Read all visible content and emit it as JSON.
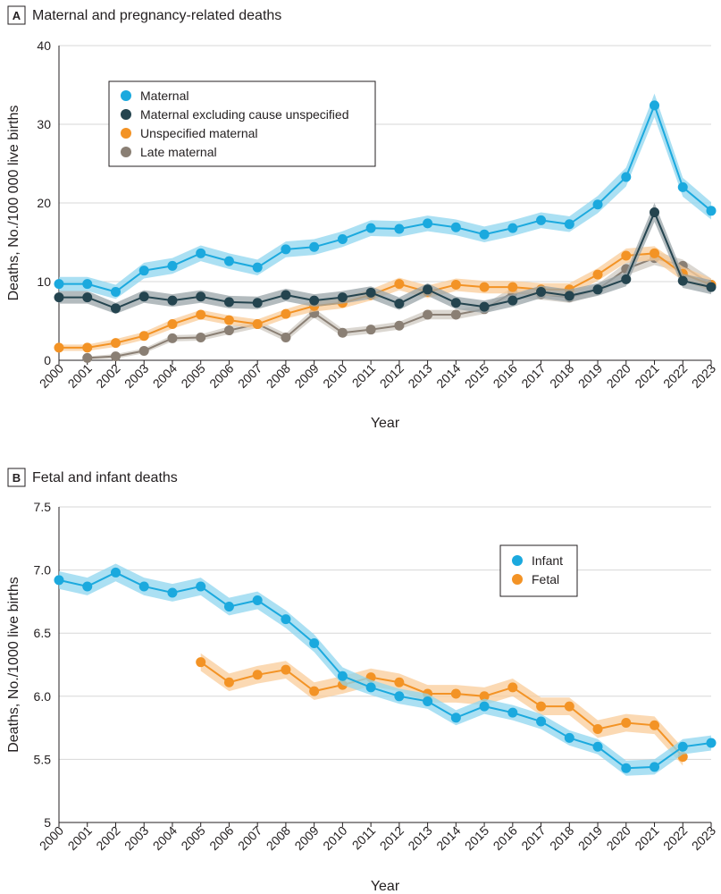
{
  "chart_data": [
    {
      "panel": "A",
      "type": "line",
      "title": "Maternal and pregnancy-related deaths",
      "xlabel": "Year",
      "ylabel": "Deaths, No./100 000 live births",
      "ylim": [
        0,
        40
      ],
      "yticks": [
        "0",
        "10",
        "20",
        "30",
        "40"
      ],
      "grid": "horizontal",
      "legend_position": "top-left",
      "x": [
        "2000",
        "2001",
        "2002",
        "2003",
        "2004",
        "2005",
        "2006",
        "2007",
        "2008",
        "2009",
        "2010",
        "2011",
        "2012",
        "2013",
        "2014",
        "2015",
        "2016",
        "2017",
        "2018",
        "2019",
        "2020",
        "2021",
        "2022",
        "2023"
      ],
      "series": [
        {
          "name": "Maternal",
          "color": "#1ba9de",
          "band_color": "#8fd5ef",
          "values": [
            9.7,
            9.7,
            8.7,
            11.4,
            12.0,
            13.6,
            12.6,
            11.8,
            14.1,
            14.4,
            15.4,
            16.8,
            16.7,
            17.4,
            16.9,
            16.0,
            16.8,
            17.8,
            17.3,
            19.8,
            23.3,
            32.4,
            22.0,
            19.0
          ],
          "band": [
            0.9,
            0.9,
            0.9,
            1.0,
            1.0,
            1.0,
            1.0,
            1.0,
            1.0,
            1.0,
            1.0,
            1.0,
            1.0,
            1.0,
            1.0,
            1.0,
            1.0,
            1.0,
            1.0,
            1.1,
            1.2,
            1.5,
            1.2,
            1.1
          ]
        },
        {
          "name": "Maternal excluding cause unspecified",
          "color": "#24444f",
          "band_color": "#9aa4a8",
          "values": [
            8.0,
            8.0,
            6.6,
            8.1,
            7.6,
            8.1,
            7.4,
            7.3,
            8.3,
            7.6,
            8.0,
            8.6,
            7.2,
            9.0,
            7.3,
            6.8,
            7.6,
            8.7,
            8.2,
            9.0,
            10.3,
            18.8,
            10.1,
            9.3
          ],
          "band": [
            0.8,
            0.8,
            0.7,
            0.8,
            0.8,
            0.8,
            0.8,
            0.8,
            0.8,
            0.8,
            0.8,
            0.8,
            0.8,
            0.8,
            0.8,
            0.8,
            0.8,
            0.8,
            0.8,
            0.8,
            0.9,
            1.2,
            0.9,
            0.9
          ]
        },
        {
          "name": "Unspecified maternal",
          "color": "#f39325",
          "band_color": "#f9cc9a",
          "values": [
            1.6,
            1.6,
            2.2,
            3.1,
            4.6,
            5.8,
            5.1,
            4.6,
            5.9,
            6.9,
            7.3,
            8.3,
            9.7,
            8.7,
            9.6,
            9.3,
            9.3,
            9.0,
            9.0,
            10.9,
            13.3,
            13.6,
            11.0,
            9.6
          ],
          "band": [
            0.4,
            0.4,
            0.5,
            0.5,
            0.6,
            0.6,
            0.6,
            0.6,
            0.6,
            0.7,
            0.7,
            0.7,
            0.8,
            0.8,
            0.8,
            0.8,
            0.8,
            0.8,
            0.8,
            0.8,
            0.9,
            0.9,
            0.9,
            0.8
          ]
        },
        {
          "name": "Late maternal",
          "color": "#8a7f74",
          "band_color": "#cfc9c2",
          "values": [
            null,
            0.3,
            0.5,
            1.2,
            2.8,
            2.9,
            3.8,
            4.6,
            2.9,
            6.0,
            3.5,
            3.9,
            4.4,
            5.8,
            5.8,
            6.5,
            8.6,
            8.4,
            8.0,
            9.0,
            11.6,
            13.0,
            12.0,
            9.6
          ],
          "band": [
            0,
            0.2,
            0.3,
            0.3,
            0.4,
            0.4,
            0.5,
            0.5,
            0.5,
            0.6,
            0.5,
            0.5,
            0.5,
            0.6,
            0.6,
            0.6,
            0.7,
            0.7,
            0.7,
            0.7,
            0.8,
            0.9,
            0.8,
            0.8
          ]
        }
      ]
    },
    {
      "panel": "B",
      "type": "line",
      "title": "Fetal and infant deaths",
      "xlabel": "Year",
      "ylabel": "Deaths, No./1000 live births",
      "ylim": [
        5,
        7.5
      ],
      "yticks": [
        "5",
        "5.5",
        "6.0",
        "6.5",
        "7.0",
        "7.5"
      ],
      "grid": "horizontal",
      "legend_position": "top-right",
      "x": [
        "2000",
        "2001",
        "2002",
        "2003",
        "2004",
        "2005",
        "2006",
        "2007",
        "2008",
        "2009",
        "2010",
        "2011",
        "2012",
        "2013",
        "2014",
        "2015",
        "2016",
        "2017",
        "2018",
        "2019",
        "2020",
        "2021",
        "2022",
        "2023"
      ],
      "series": [
        {
          "name": "Infant",
          "color": "#1ba9de",
          "band_color": "#8fd5ef",
          "values": [
            6.92,
            6.87,
            6.98,
            6.87,
            6.82,
            6.87,
            6.71,
            6.76,
            6.61,
            6.42,
            6.16,
            6.07,
            6.0,
            5.96,
            5.83,
            5.92,
            5.87,
            5.8,
            5.67,
            5.6,
            5.43,
            5.44,
            5.6,
            5.63
          ],
          "band": [
            0.07,
            0.07,
            0.07,
            0.07,
            0.07,
            0.07,
            0.07,
            0.07,
            0.07,
            0.07,
            0.07,
            0.06,
            0.06,
            0.06,
            0.06,
            0.06,
            0.06,
            0.06,
            0.06,
            0.06,
            0.06,
            0.06,
            0.06,
            0.06
          ]
        },
        {
          "name": "Fetal",
          "color": "#f39325",
          "band_color": "#f9cc9a",
          "values": [
            null,
            null,
            null,
            null,
            null,
            6.27,
            6.11,
            6.17,
            6.21,
            6.04,
            6.09,
            6.15,
            6.11,
            6.02,
            6.02,
            6.0,
            6.07,
            5.92,
            5.92,
            5.74,
            5.79,
            5.77,
            5.52,
            null
          ],
          "band": [
            0,
            0,
            0,
            0,
            0,
            0.07,
            0.07,
            0.07,
            0.07,
            0.07,
            0.07,
            0.07,
            0.07,
            0.07,
            0.07,
            0.07,
            0.07,
            0.07,
            0.07,
            0.07,
            0.07,
            0.07,
            0.07,
            0
          ]
        }
      ]
    }
  ]
}
